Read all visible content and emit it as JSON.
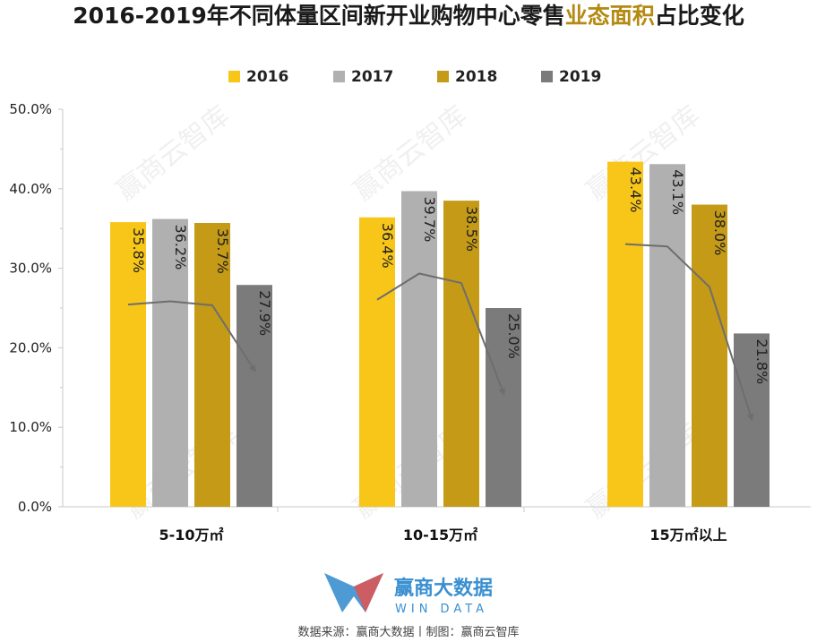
{
  "colors": {
    "2016": "#f7c619",
    "2017": "#b1b0b1",
    "2018": "#c49a16",
    "2019": "#7c7b7c",
    "title_highlight": "#b48a13",
    "arrow": "#6e6e6e",
    "logo": "#3a8fd0"
  },
  "chart_data": {
    "type": "bar",
    "title_main": "2016-2019年不同体量区间新开业购物中心零售",
    "title_highlight": "业态面积",
    "title_tail": "占比变化",
    "categories": [
      "5-10万㎡",
      "10-15万㎡",
      "15万㎡以上"
    ],
    "series": [
      {
        "name": "2016",
        "values": [
          35.8,
          36.4,
          43.4
        ]
      },
      {
        "name": "2017",
        "values": [
          36.2,
          39.7,
          43.1
        ]
      },
      {
        "name": "2018",
        "values": [
          35.7,
          38.5,
          38.0
        ]
      },
      {
        "name": "2019",
        "values": [
          27.9,
          25.0,
          21.8
        ]
      }
    ],
    "value_labels": [
      [
        "35.8%",
        "36.4%",
        "43.4%"
      ],
      [
        "36.2%",
        "39.7%",
        "43.1%"
      ],
      [
        "35.7%",
        "38.5%",
        "38.0%"
      ],
      [
        "27.9%",
        "25.0%",
        "21.8%"
      ]
    ],
    "ylim": [
      0,
      50
    ],
    "yticks": [
      0,
      10,
      20,
      30,
      40,
      50
    ],
    "ytick_labels": [
      "0.0%",
      "10.0%",
      "20.0%",
      "30.0%",
      "40.0%",
      "50.0%"
    ],
    "legend_position": "top-center",
    "grid": false,
    "trend_arrows": true
  },
  "watermark": "赢商云智库",
  "logo": {
    "cn": "赢商大数据",
    "en": "WIN DATA"
  },
  "source": "数据来源：赢商大数据丨制图：赢商云智库"
}
